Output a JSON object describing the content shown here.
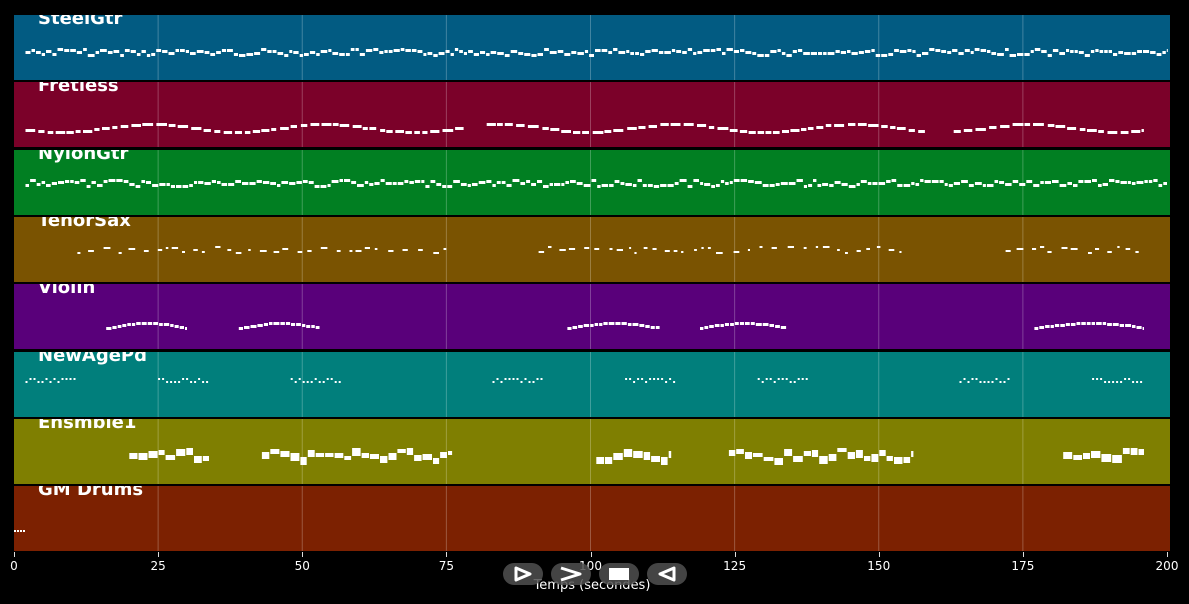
{
  "tracks": [
    {
      "name": "SteelGtr",
      "color": "#025b82"
    },
    {
      "name": "Fretless",
      "color": "#7b0129"
    },
    {
      "name": "NylonGtr",
      "color": "#017f22"
    },
    {
      "name": "TenorSax",
      "color": "#7a5301"
    },
    {
      "name": "Violin",
      "color": "#59007a"
    },
    {
      "name": "NewAgePd",
      "color": "#017f7c"
    },
    {
      "name": "Ensmble1",
      "color": "#7f7f01"
    },
    {
      "name": "GM Drums",
      "color": "#7c2101"
    }
  ],
  "axis": {
    "xlabel": "Temps (secondes)",
    "ticks": [
      "0",
      "25",
      "50",
      "75",
      "100",
      "125",
      "150",
      "175",
      "200"
    ],
    "xlim": [
      0,
      200
    ]
  },
  "transport": {
    "buttons": [
      {
        "name": "play-icon"
      },
      {
        "name": "fast-forward-icon"
      },
      {
        "name": "stop-icon"
      },
      {
        "name": "rewind-icon"
      }
    ]
  },
  "note_color": "#ffffff",
  "grid_color": "#ffffff"
}
